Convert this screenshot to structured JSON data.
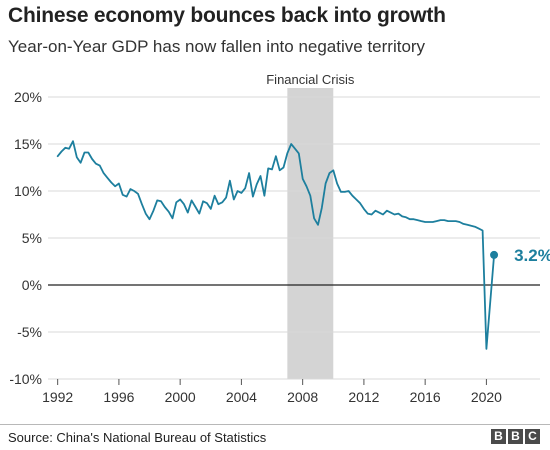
{
  "header": {
    "title": "Chinese economy bounces back into growth",
    "subtitle": "Year-on-Year GDP has now fallen into negative territory"
  },
  "footer": {
    "source": "Source: China's National Bureau of Statistics",
    "logo_letters": [
      "B",
      "B",
      "C"
    ]
  },
  "colors": {
    "line": "#1d7f9e",
    "shade": "#d4d4d4",
    "grid": "#d9d9d9",
    "zero_line": "#222222",
    "label": "#1d7f9e"
  },
  "chart_data": {
    "type": "line",
    "title": "Chinese economy bounces back into growth",
    "subtitle": "Year-on-Year GDP has now fallen into negative territory",
    "xlabel": "",
    "ylabel": "",
    "xlim": [
      1991.5,
      2023.5
    ],
    "ylim": [
      -10,
      20
    ],
    "x_ticks": [
      1992,
      1996,
      2000,
      2004,
      2008,
      2012,
      2016,
      2020
    ],
    "x_tick_labels": [
      "1992",
      "1996",
      "2000",
      "2004",
      "2008",
      "2012",
      "2016",
      "2020"
    ],
    "y_ticks": [
      -10,
      -5,
      0,
      5,
      10,
      15,
      20
    ],
    "y_tick_labels": [
      "-10%",
      "-5%",
      "0%",
      "5%",
      "10%",
      "15%",
      "20%"
    ],
    "grid": true,
    "shaded_region": {
      "label": "Financial Crisis",
      "x_start": 2007,
      "x_end": 2010
    },
    "annotation": {
      "text": "3.2%",
      "x": 2020.5,
      "y": 3.2
    },
    "series": [
      {
        "x": [
          1992.0,
          1992.25,
          1992.5,
          1992.75,
          1993.0,
          1993.25,
          1993.5,
          1993.75,
          1994.0,
          1994.25,
          1994.5,
          1994.75,
          1995.0,
          1995.25,
          1995.5,
          1995.75,
          1996.0,
          1996.25,
          1996.5,
          1996.75,
          1997.0,
          1997.25,
          1997.5,
          1997.75,
          1998.0,
          1998.25,
          1998.5,
          1998.75,
          1999.0,
          1999.25,
          1999.5,
          1999.75,
          2000.0,
          2000.25,
          2000.5,
          2000.75,
          2001.0,
          2001.25,
          2001.5,
          2001.75,
          2002.0,
          2002.25,
          2002.5,
          2002.75,
          2003.0,
          2003.25,
          2003.5,
          2003.75,
          2004.0,
          2004.25,
          2004.5,
          2004.75,
          2005.0,
          2005.25,
          2005.5,
          2005.75,
          2006.0,
          2006.25,
          2006.5,
          2006.75,
          2007.0,
          2007.25,
          2007.5,
          2007.75,
          2008.0,
          2008.25,
          2008.5,
          2008.75,
          2009.0,
          2009.25,
          2009.5,
          2009.75,
          2010.0,
          2010.25,
          2010.5,
          2010.75,
          2011.0,
          2011.25,
          2011.5,
          2011.75,
          2012.0,
          2012.25,
          2012.5,
          2012.75,
          2013.0,
          2013.25,
          2013.5,
          2013.75,
          2014.0,
          2014.25,
          2014.5,
          2014.75,
          2015.0,
          2015.25,
          2015.5,
          2015.75,
          2016.0,
          2016.25,
          2016.5,
          2016.75,
          2017.0,
          2017.25,
          2017.5,
          2017.75,
          2018.0,
          2018.25,
          2018.5,
          2018.75,
          2019.0,
          2019.25,
          2019.5,
          2019.75,
          2020.0,
          2020.5
        ],
        "values": [
          13.7,
          14.2,
          14.6,
          14.5,
          15.3,
          13.6,
          13.0,
          14.1,
          14.1,
          13.4,
          12.9,
          12.7,
          11.9,
          11.4,
          10.9,
          10.5,
          10.8,
          9.6,
          9.4,
          10.2,
          10.0,
          9.7,
          8.6,
          7.6,
          7.0,
          7.9,
          9.0,
          8.9,
          8.3,
          7.8,
          7.1,
          8.8,
          9.1,
          8.6,
          7.7,
          9.0,
          8.3,
          7.6,
          8.9,
          8.7,
          8.1,
          9.5,
          8.6,
          8.8,
          9.3,
          11.1,
          9.1,
          10.0,
          9.8,
          10.3,
          11.9,
          9.4,
          10.7,
          11.6,
          9.5,
          12.4,
          12.3,
          13.7,
          12.2,
          12.5,
          14.0,
          15.0,
          14.5,
          14.0,
          11.3,
          10.5,
          9.5,
          7.1,
          6.4,
          8.2,
          10.8,
          11.9,
          12.2,
          10.8,
          9.9,
          9.9,
          10.0,
          9.5,
          9.1,
          8.7,
          8.1,
          7.6,
          7.5,
          7.9,
          7.7,
          7.5,
          7.9,
          7.7,
          7.5,
          7.6,
          7.3,
          7.2,
          7.0,
          7.0,
          6.9,
          6.8,
          6.7,
          6.7,
          6.7,
          6.8,
          6.9,
          6.9,
          6.8,
          6.8,
          6.8,
          6.7,
          6.5,
          6.4,
          6.3,
          6.2,
          6.0,
          5.8,
          -6.8,
          3.2
        ]
      }
    ]
  }
}
